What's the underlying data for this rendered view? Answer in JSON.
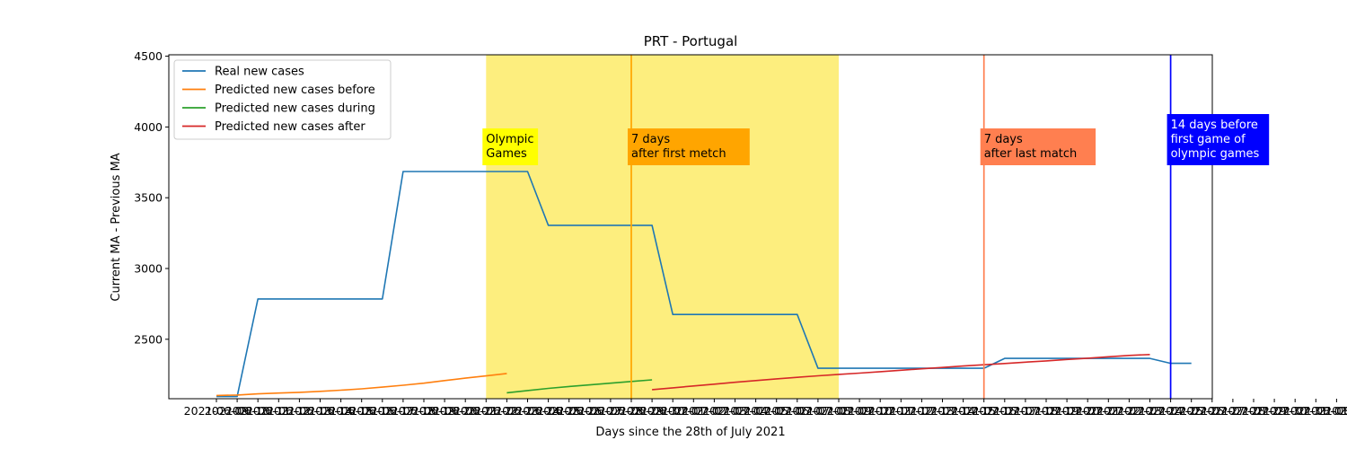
{
  "chart_data": {
    "type": "line",
    "title": "PRT - Portugal",
    "xlabel": "Days since the 28th of July 2021",
    "ylabel": "Current MA - Previous MA",
    "x_dates": [
      "2021-06-09",
      "2021-06-10",
      "2021-06-11",
      "2021-06-12",
      "2021-06-13",
      "2021-06-14",
      "2021-06-15",
      "2021-06-16",
      "2021-06-17",
      "2021-06-18",
      "2021-06-19",
      "2021-06-20",
      "2021-06-21",
      "2021-06-22",
      "2021-06-23",
      "2021-06-24",
      "2021-06-25",
      "2021-06-26",
      "2021-06-27",
      "2021-06-28",
      "2021-06-29",
      "2021-06-30",
      "2021-07-01",
      "2021-07-02",
      "2021-07-03",
      "2021-07-04",
      "2021-07-05",
      "2021-07-06",
      "2021-07-07",
      "2021-07-08",
      "2021-07-09",
      "2021-07-10",
      "2021-07-11",
      "2021-07-12",
      "2021-07-13",
      "2021-07-14",
      "2021-07-15",
      "2021-07-16",
      "2021-07-17",
      "2021-07-18",
      "2021-07-19",
      "2021-07-20",
      "2021-07-21",
      "2021-07-22",
      "2021-07-23",
      "2021-07-24",
      "2021-07-25",
      "2021-07-26",
      "2021-07-27",
      "2021-07-28",
      "2021-07-29",
      "2021-07-30",
      "2021-07-31",
      "2021-08-01",
      "2021-08-02",
      "2021-08-03",
      "2021-08-04",
      "2021-08-05",
      "2021-08-06",
      "2021-08-07",
      "2021-08-08"
    ],
    "y_ticks": [
      2500,
      3000,
      3500,
      4000,
      4500
    ],
    "ylim": [
      2080,
      4510
    ],
    "series": [
      {
        "name": "Real new cases",
        "color": "#1f77b4",
        "x_start": 0,
        "values": [
          2095,
          2095,
          2785,
          2785,
          2785,
          2785,
          2785,
          2785,
          2785,
          3685,
          3685,
          3685,
          3685,
          3685,
          3685,
          3685,
          3305,
          3305,
          3305,
          3305,
          3305,
          3305,
          2675,
          2675,
          2675,
          2675,
          2675,
          2675,
          2675,
          2295,
          2295,
          2295,
          2295,
          2295,
          2295,
          2295,
          2295,
          2295,
          2365,
          2365,
          2365,
          2365,
          2365,
          2365,
          2365,
          2365,
          2330,
          2330
        ]
      },
      {
        "name": "Predicted new cases before",
        "color": "#ff7f0e",
        "x_start": 0,
        "values": [
          2103,
          2106,
          2114,
          2120,
          2125,
          2132,
          2140,
          2150,
          2162,
          2175,
          2190,
          2208,
          2225,
          2241,
          2258
        ]
      },
      {
        "name": "Predicted new cases during",
        "color": "#2ca02c",
        "x_start": 14,
        "values": [
          2122,
          2138,
          2153,
          2166,
          2178,
          2190,
          2202,
          2213
        ]
      },
      {
        "name": "Predicted new cases after",
        "color": "#d62728",
        "x_start": 21,
        "values": [
          2144,
          2157,
          2170,
          2183,
          2196,
          2208,
          2220,
          2231,
          2242,
          2252,
          2261,
          2271,
          2281,
          2291,
          2301,
          2311,
          2320,
          2329,
          2338,
          2347,
          2357,
          2366,
          2376,
          2386,
          2392
        ]
      }
    ],
    "shaded_region": {
      "x_from": 13,
      "x_to": 30,
      "color": "#fdee7e"
    },
    "vertical_lines": [
      {
        "x": 20,
        "color": "#ffa500"
      },
      {
        "x": 37,
        "color": "#ff7f50"
      },
      {
        "x": 46,
        "color": "#0000ff"
      }
    ],
    "legend_position": "top-left",
    "grid": false
  },
  "annotations": [
    {
      "lines": [
        "Olympic",
        "Games"
      ],
      "bg": "#ffff00",
      "fg": "#000000",
      "x": 13
    },
    {
      "lines": [
        "7 days",
        "after first metch"
      ],
      "bg": "#ffa500",
      "fg": "#000000",
      "x": 20
    },
    {
      "lines": [
        "7 days",
        "after last match"
      ],
      "bg": "#ff7f50",
      "fg": "#000000",
      "x": 37
    },
    {
      "lines": [
        "14 days before",
        "first game of",
        "olympic games"
      ],
      "bg": "#0000ff",
      "fg": "#ffffff",
      "x": 46
    }
  ]
}
